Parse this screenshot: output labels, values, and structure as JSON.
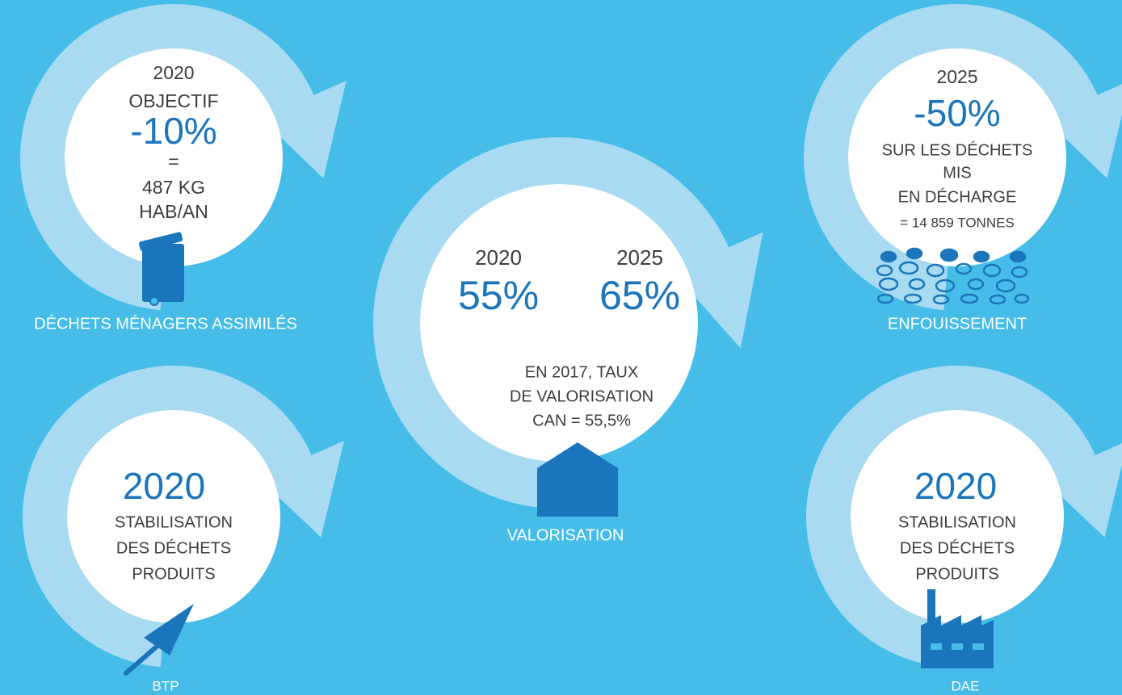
{
  "menagers": {
    "lines": [
      "2020",
      "OBJECTIF",
      "-10%",
      "=",
      "487 KG",
      "HAB/AN"
    ],
    "label": "DÉCHETS MÉNAGERS ASSIMILÉS"
  },
  "btp": {
    "lines": [
      "2020",
      "STABILISATION",
      "DES DÉCHETS",
      "PRODUITS"
    ],
    "label": "BTP"
  },
  "valorisation": {
    "col1": [
      "2020",
      "55%"
    ],
    "col2": [
      "2025",
      "65%"
    ],
    "lines": [
      "EN 2017, TAUX",
      "DE VALORISATION",
      "CAN = 55,5%"
    ],
    "label": "VALORISATION"
  },
  "enfouissement": {
    "lines": [
      "2025",
      "-50%",
      "SUR LES DÉCHETS",
      "MIS",
      "EN DÉCHARGE",
      "= 14 859 TONNES"
    ],
    "label": "ENFOUISSEMENT"
  },
  "dae": {
    "lines": [
      "2020",
      "STABILISATION",
      "DES DÉCHETS",
      "PRODUITS"
    ],
    "label": "DAE"
  }
}
